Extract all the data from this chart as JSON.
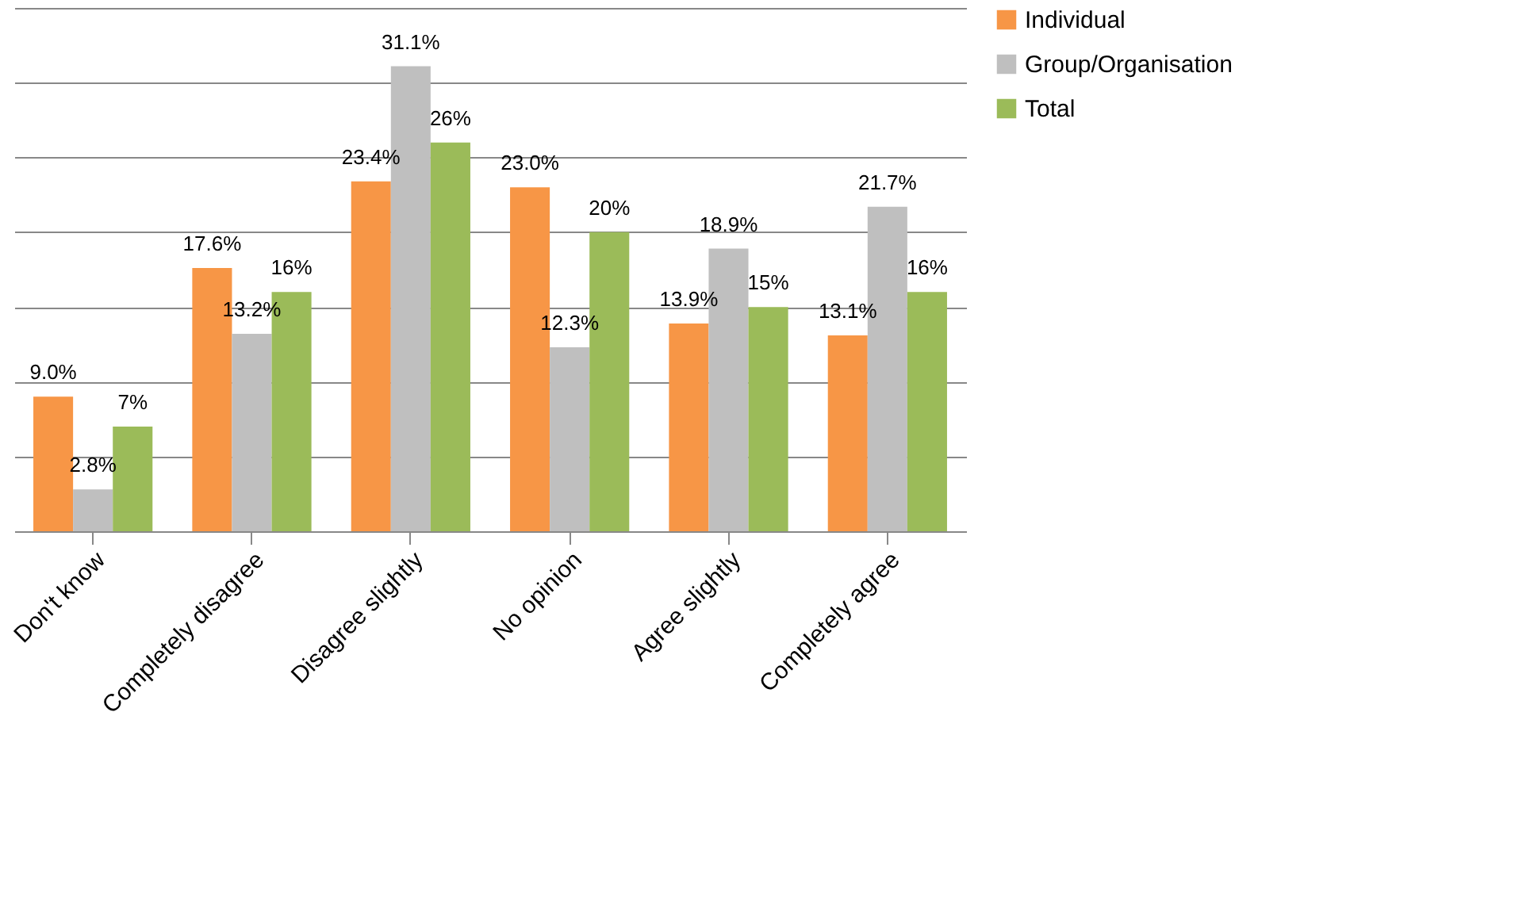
{
  "chart_data": {
    "type": "bar",
    "categories": [
      "Don't know",
      "Completely disagree",
      "Disagree slightly",
      "No opinion",
      "Agree slightly",
      "Completely agree"
    ],
    "series": [
      {
        "name": "Individual",
        "color": "#f79646",
        "values": [
          9.0,
          17.6,
          23.4,
          23.0,
          13.9,
          13.1
        ],
        "value_labels": [
          "9.0%",
          "17.6%",
          "23.4%",
          "23.0%",
          "13.9%",
          "13.1%"
        ]
      },
      {
        "name": "Group/Organisation",
        "color": "#bfbfbf",
        "values": [
          2.8,
          13.2,
          31.1,
          12.3,
          18.9,
          21.7
        ],
        "value_labels": [
          "2.8%",
          "13.2%",
          "31.1%",
          "12.3%",
          "18.9%",
          "21.7%"
        ]
      },
      {
        "name": "Total",
        "color": "#9bbb59",
        "values": [
          7,
          16,
          26,
          20,
          15,
          16
        ],
        "value_labels": [
          "7%",
          "16%",
          "26%",
          "20%",
          "15%",
          "16%"
        ]
      }
    ],
    "ylim": [
      0,
      35
    ],
    "yticks": [
      {
        "value": 0,
        "label": null
      },
      {
        "value": 5,
        "label": null
      },
      {
        "value": 10,
        "label": null
      },
      {
        "value": 15,
        "label": null
      },
      {
        "value": 20,
        "label": null
      },
      {
        "value": 25,
        "label": null
      },
      {
        "value": 30,
        "label": null
      },
      {
        "value": 35,
        "label": null
      }
    ],
    "grid": "y",
    "legend": "right",
    "tick_labels": "x"
  }
}
